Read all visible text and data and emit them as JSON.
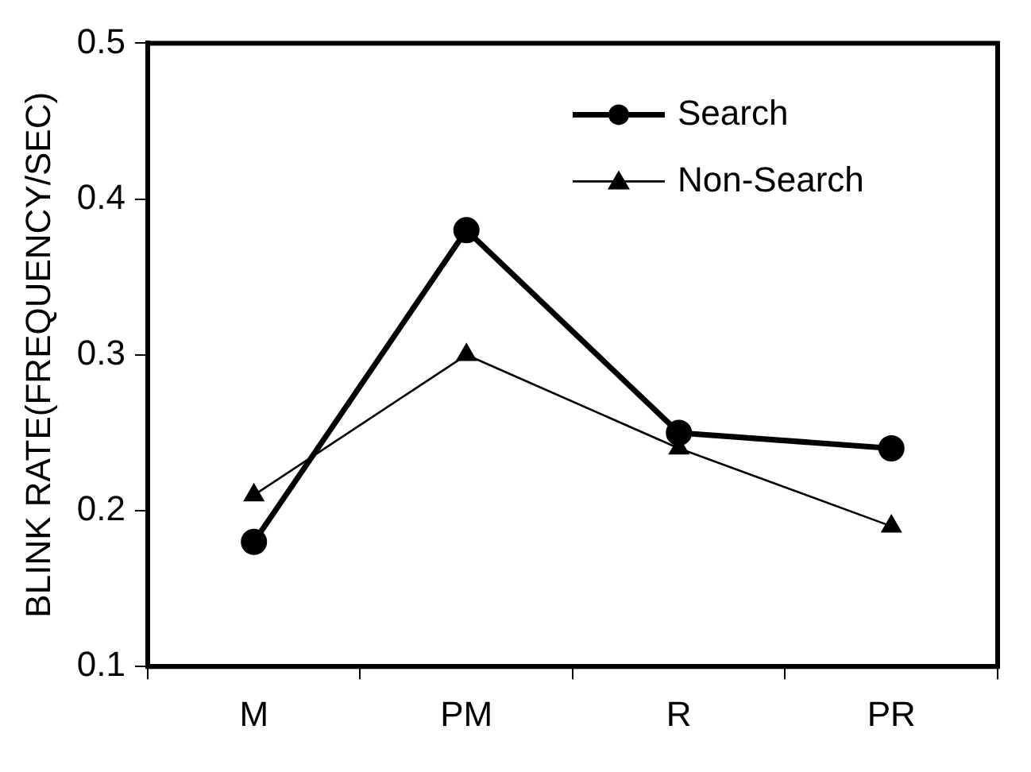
{
  "chart_data": {
    "type": "line",
    "ylabel": "BLINK RATE(FREQUENCY/SEC)",
    "categories": [
      "M",
      "PM",
      "R",
      "PR"
    ],
    "series": [
      {
        "name": "Search",
        "color": "#000000",
        "marker": "circle",
        "values": [
          0.18,
          0.38,
          0.25,
          0.24
        ]
      },
      {
        "name": "Non-Search",
        "color": "#000000",
        "marker": "triangle",
        "values": [
          0.21,
          0.3,
          0.24,
          0.19
        ]
      }
    ],
    "ylim": [
      0.1,
      0.5
    ],
    "yticks": [
      0.1,
      0.2,
      0.3,
      0.4,
      0.5
    ],
    "grid": false,
    "legend": "top right",
    "line_style": "solid"
  }
}
